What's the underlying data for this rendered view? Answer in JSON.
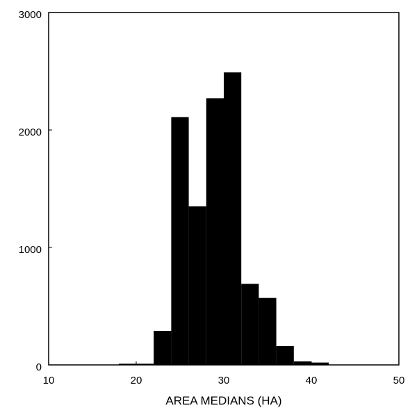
{
  "chart_data": {
    "type": "bar",
    "chart_subtype": "histogram",
    "title": "",
    "xlabel": "AREA MEDIANS (HA)",
    "ylabel": "",
    "xlim": [
      10,
      50
    ],
    "ylim": [
      0,
      3000
    ],
    "x_ticks": [
      10,
      20,
      30,
      40,
      50
    ],
    "y_ticks": [
      0,
      1000,
      2000,
      3000
    ],
    "bin_width": 2,
    "bins": [
      {
        "start": 18,
        "end": 20,
        "value": 10
      },
      {
        "start": 20,
        "end": 22,
        "value": 10
      },
      {
        "start": 22,
        "end": 24,
        "value": 290
      },
      {
        "start": 24,
        "end": 26,
        "value": 2110
      },
      {
        "start": 26,
        "end": 28,
        "value": 1350
      },
      {
        "start": 28,
        "end": 30,
        "value": 2270
      },
      {
        "start": 30,
        "end": 32,
        "value": 2490
      },
      {
        "start": 32,
        "end": 34,
        "value": 690
      },
      {
        "start": 34,
        "end": 36,
        "value": 570
      },
      {
        "start": 36,
        "end": 38,
        "value": 160
      },
      {
        "start": 38,
        "end": 40,
        "value": 30
      },
      {
        "start": 40,
        "end": 42,
        "value": 20
      }
    ],
    "grid": false,
    "legend": "none",
    "bar_color": "#000000",
    "frame_color": "#000000"
  }
}
